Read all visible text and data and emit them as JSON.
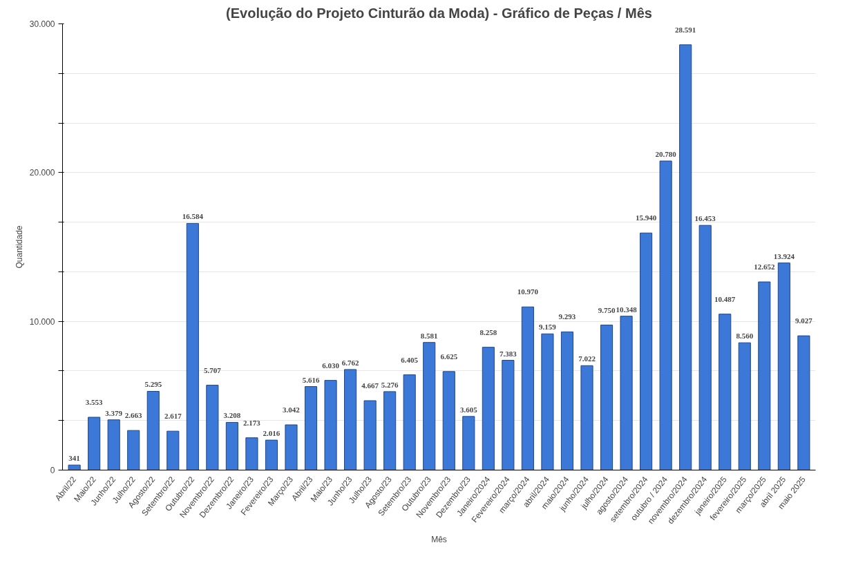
{
  "chart_data": {
    "type": "bar",
    "title": "(Evolução do Projeto Cinturão da Moda) - Gráfico de Peças / Mês",
    "xlabel": "Mês",
    "ylabel": "Quantidade",
    "categories": [
      "Abril/22",
      "Maio/22",
      "Junho/22",
      "Julho/22",
      "Agosto/22",
      "Setembro/22",
      "Outubro/22",
      "Novembro/22",
      "Dezembro/22",
      "Janeiro/23",
      "Fevereiro/23",
      "Março/23",
      "Abril/23",
      "Maio/23",
      "Junho/23",
      "Julho/23",
      "Agosto/23",
      "Setembro/23",
      "Outubro/23",
      "Novembro/23",
      "Dezembro/23",
      "Janeiro/2024",
      "Fevereiro/2024",
      "março/2024",
      "abril/2024",
      "maio/2024",
      "junho/2024",
      "julho/2024",
      "agosto/2024",
      "setembro/2024",
      "outubro / 2024",
      "novembro/2024",
      "dezembro/2024",
      "janeiro/2025",
      "fevereiro/2025",
      "março/2025",
      "abril 2025",
      "maio 2025"
    ],
    "values": [
      341,
      3553,
      3379,
      2663,
      5295,
      2617,
      16584,
      5707,
      3208,
      2173,
      2016,
      3042,
      5616,
      6030,
      6762,
      4667,
      5276,
      6405,
      8581,
      6625,
      3605,
      8258,
      7383,
      10970,
      9159,
      9293,
      7022,
      9750,
      10348,
      15940,
      20780,
      28591,
      16453,
      10487,
      8560,
      12652,
      13924,
      9027
    ],
    "value_labels": [
      "341",
      "3.553",
      "3.379",
      "2.663",
      "5.295",
      "2.617",
      "16.584",
      "5.707",
      "3.208",
      "2.173",
      "2.016",
      "3.042",
      "5.616",
      "6.030",
      "6.762",
      "4.667",
      "5.276",
      "6.405",
      "8.581",
      "6.625",
      "3.605",
      "8.258",
      "7.383",
      "10.970",
      "9.159",
      "9.293",
      "7.022",
      "9.750",
      "10.348",
      "15.940",
      "20.780",
      "28.591",
      "16.453",
      "10.487",
      "8.560",
      "12.652",
      "13.924",
      "9.027"
    ],
    "color": "#3c78d8",
    "ylim": [
      0,
      30000
    ],
    "yticks": [
      0,
      {
        "value": 3333,
        "label": null
      },
      {
        "value": 6667,
        "label": null
      },
      {
        "value": 10000,
        "label": "10.000"
      },
      {
        "value": 13333,
        "label": null
      },
      {
        "value": 16667,
        "label": null
      },
      {
        "value": 20000,
        "label": "20.000"
      },
      {
        "value": 23333,
        "label": null
      },
      {
        "value": 26667,
        "label": null
      },
      {
        "value": 30000,
        "label": "30.000"
      }
    ],
    "grid": "y"
  }
}
